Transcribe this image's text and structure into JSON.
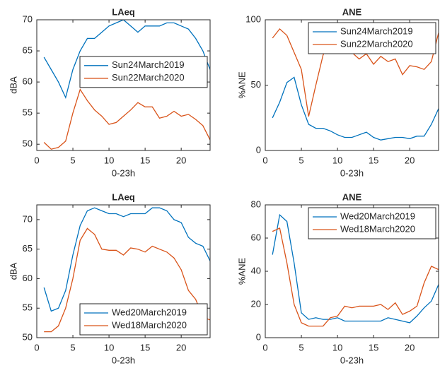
{
  "chart_data": [
    {
      "type": "line",
      "title": "LAeq",
      "xlabel": "0-23h",
      "ylabel": "dBA",
      "x": [
        1,
        2,
        3,
        4,
        5,
        6,
        7,
        8,
        9,
        10,
        11,
        12,
        13,
        14,
        15,
        16,
        17,
        18,
        19,
        20,
        21,
        22,
        23,
        24
      ],
      "series": [
        {
          "name": "Sun24March2019",
          "color": "#0072bd",
          "values": [
            64,
            62,
            60,
            57.5,
            62,
            65,
            67,
            67,
            68,
            69,
            69.5,
            70,
            69,
            68,
            69,
            69,
            69,
            69.5,
            69.5,
            69,
            68.5,
            67,
            65,
            62
          ]
        },
        {
          "name": "Sun22March2020",
          "color": "#d95319",
          "values": [
            50.3,
            49.2,
            49.5,
            50.5,
            55,
            58.8,
            57,
            55.5,
            54.5,
            53.2,
            53.5,
            54.5,
            55.5,
            56.7,
            56,
            56,
            54.2,
            54.5,
            55.3,
            54.5,
            54.8,
            54,
            53,
            50.7
          ]
        }
      ],
      "xlim": [
        0,
        24
      ],
      "ylim": [
        49,
        70
      ],
      "xticks": [
        0,
        5,
        10,
        15,
        20
      ],
      "yticks": [
        50,
        55,
        60,
        65,
        70
      ],
      "legend": "east"
    },
    {
      "type": "line",
      "title": "ANE",
      "xlabel": "0-23h",
      "ylabel": "%ANE",
      "x": [
        1,
        2,
        3,
        4,
        5,
        6,
        7,
        8,
        9,
        10,
        11,
        12,
        13,
        14,
        15,
        16,
        17,
        18,
        19,
        20,
        21,
        22,
        23,
        24
      ],
      "series": [
        {
          "name": "Sun24March2019",
          "color": "#0072bd",
          "values": [
            25,
            37,
            52,
            56,
            35,
            20,
            17,
            17,
            15,
            12,
            10,
            10,
            12,
            14,
            10,
            8,
            9,
            10,
            10,
            9,
            11,
            11,
            20,
            32
          ]
        },
        {
          "name": "Sun22March2020",
          "color": "#d95319",
          "values": [
            86,
            93,
            88,
            75,
            62,
            26,
            50,
            73,
            85,
            90,
            80,
            75,
            70,
            74,
            66,
            72,
            68,
            70,
            58,
            65,
            64,
            62,
            68,
            90
          ]
        }
      ],
      "xlim": [
        0,
        24
      ],
      "ylim": [
        0,
        100
      ],
      "xticks": [
        0,
        5,
        10,
        15,
        20
      ],
      "yticks": [
        0,
        50,
        100
      ],
      "legend": "northeast"
    },
    {
      "type": "line",
      "title": "LAeq",
      "xlabel": "0-23h",
      "ylabel": "dBA",
      "x": [
        1,
        2,
        3,
        4,
        5,
        6,
        7,
        8,
        9,
        10,
        11,
        12,
        13,
        14,
        15,
        16,
        17,
        18,
        19,
        20,
        21,
        22,
        23,
        24
      ],
      "series": [
        {
          "name": "Wed20March2019",
          "color": "#0072bd",
          "values": [
            58.5,
            54.5,
            55,
            58,
            64,
            69,
            71.5,
            72,
            71.5,
            71,
            71,
            70.5,
            71,
            71,
            71,
            72,
            72,
            71.5,
            70,
            69.5,
            67,
            66,
            65.5,
            63
          ]
        },
        {
          "name": "Wed18March2020",
          "color": "#d95319",
          "values": [
            51,
            51,
            52,
            55,
            60,
            66.5,
            68.5,
            67.5,
            65,
            64.8,
            64.8,
            64,
            65.2,
            65,
            64.5,
            65.5,
            65,
            64.5,
            63.5,
            61.5,
            58,
            56.5,
            53.5,
            53
          ]
        }
      ],
      "xlim": [
        0,
        24
      ],
      "ylim": [
        50,
        72.5
      ],
      "xticks": [
        0,
        5,
        10,
        15,
        20
      ],
      "yticks": [
        50,
        55,
        60,
        65,
        70
      ],
      "legend": "southeast"
    },
    {
      "type": "line",
      "title": "ANE",
      "xlabel": "0-23h",
      "ylabel": "%ANE",
      "x": [
        1,
        2,
        3,
        4,
        5,
        6,
        7,
        8,
        9,
        10,
        11,
        12,
        13,
        14,
        15,
        16,
        17,
        18,
        19,
        20,
        21,
        22,
        23,
        24
      ],
      "series": [
        {
          "name": "Wed20March2019",
          "color": "#0072bd",
          "values": [
            50,
            74,
            70,
            45,
            15,
            11,
            12,
            11,
            11,
            12,
            10,
            10,
            10,
            10,
            10,
            10,
            12,
            11,
            10,
            9,
            13,
            18,
            22,
            32
          ]
        },
        {
          "name": "Wed18March2020",
          "color": "#d95319",
          "values": [
            64,
            66,
            45,
            20,
            9,
            7,
            7,
            7,
            12,
            13,
            19,
            18,
            19,
            19,
            19,
            20,
            17,
            21,
            14,
            16,
            19,
            33,
            43,
            41
          ]
        }
      ],
      "xlim": [
        0,
        24
      ],
      "ylim": [
        0,
        80
      ],
      "xticks": [
        0,
        5,
        10,
        15,
        20
      ],
      "yticks": [
        0,
        20,
        40,
        60,
        80
      ],
      "legend": "northeast"
    }
  ]
}
